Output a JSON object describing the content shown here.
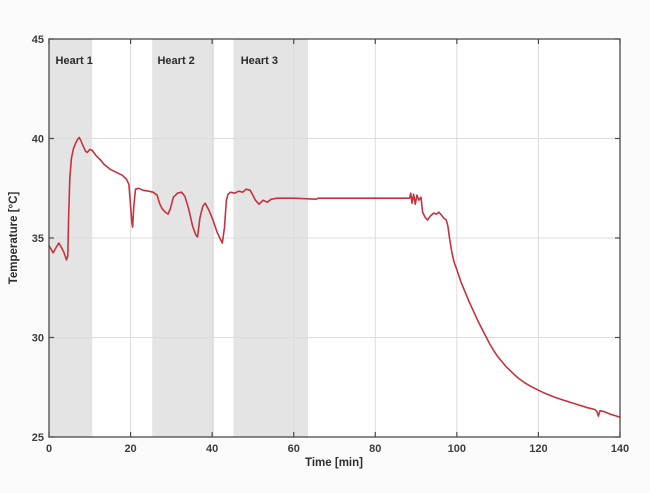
{
  "figure": {
    "background": "#fbfbfb",
    "plot_background": "#ffffff"
  },
  "chart_data": {
    "type": "line",
    "title": "",
    "xlabel": "Time [min]",
    "ylabel": "Temperature [°C]",
    "xlim": [
      0,
      140
    ],
    "ylim": [
      25,
      45
    ],
    "xticks": [
      0,
      20,
      40,
      60,
      80,
      100,
      120,
      140
    ],
    "yticks": [
      25,
      30,
      35,
      40,
      45
    ],
    "grid": true,
    "legend": "none",
    "colors": {
      "line": "#c6323e",
      "band": "#e4e4e4",
      "grid": "#dcdcdc",
      "axis": "#4a4a4a",
      "tick_text": "#3d3d3d"
    },
    "regions": [
      {
        "label": "Heart 1",
        "x0": 0,
        "x1": 10.6,
        "label_x": 1.6,
        "label_y": 43.75
      },
      {
        "label": "Heart 2",
        "x0": 25.3,
        "x1": 40.5,
        "label_x": 26.6,
        "label_y": 43.75
      },
      {
        "label": "Heart 3",
        "x0": 45.2,
        "x1": 63.5,
        "label_x": 47.0,
        "label_y": 43.75
      }
    ],
    "series": [
      {
        "name": "Temperature",
        "color": "#c6323e",
        "points": [
          [
            0,
            34.6
          ],
          [
            0.5,
            34.45
          ],
          [
            1,
            34.25
          ],
          [
            1.7,
            34.5
          ],
          [
            2.4,
            34.75
          ],
          [
            3,
            34.55
          ],
          [
            3.6,
            34.3
          ],
          [
            4.3,
            33.9
          ],
          [
            4.6,
            34.1
          ],
          [
            4.8,
            36.0
          ],
          [
            5.1,
            38.0
          ],
          [
            5.5,
            39.0
          ],
          [
            6,
            39.5
          ],
          [
            6.5,
            39.75
          ],
          [
            7,
            39.95
          ],
          [
            7.4,
            40.05
          ],
          [
            7.8,
            39.9
          ],
          [
            8.3,
            39.65
          ],
          [
            9,
            39.35
          ],
          [
            9.4,
            39.3
          ],
          [
            10,
            39.45
          ],
          [
            10.6,
            39.4
          ],
          [
            11.5,
            39.15
          ],
          [
            12.5,
            38.95
          ],
          [
            13.5,
            38.7
          ],
          [
            15,
            38.45
          ],
          [
            16.5,
            38.3
          ],
          [
            18,
            38.15
          ],
          [
            19,
            37.95
          ],
          [
            19.6,
            37.7
          ],
          [
            20,
            36.6
          ],
          [
            20.3,
            35.8
          ],
          [
            20.5,
            35.55
          ],
          [
            20.8,
            36.6
          ],
          [
            21.2,
            37.45
          ],
          [
            22,
            37.5
          ],
          [
            23,
            37.4
          ],
          [
            24.5,
            37.35
          ],
          [
            25.5,
            37.3
          ],
          [
            26.5,
            37.15
          ],
          [
            27.2,
            36.7
          ],
          [
            27.8,
            36.45
          ],
          [
            28.5,
            36.3
          ],
          [
            29.2,
            36.2
          ],
          [
            29.8,
            36.5
          ],
          [
            30.5,
            37.05
          ],
          [
            31.5,
            37.25
          ],
          [
            32.5,
            37.3
          ],
          [
            33.3,
            37.1
          ],
          [
            34.2,
            36.5
          ],
          [
            35.2,
            35.6
          ],
          [
            36,
            35.15
          ],
          [
            36.4,
            35.05
          ],
          [
            37,
            36.0
          ],
          [
            37.7,
            36.6
          ],
          [
            38.3,
            36.75
          ],
          [
            39.2,
            36.4
          ],
          [
            40.2,
            35.9
          ],
          [
            41.2,
            35.3
          ],
          [
            42,
            34.95
          ],
          [
            42.5,
            34.75
          ],
          [
            43,
            35.5
          ],
          [
            43.5,
            36.9
          ],
          [
            43.9,
            37.2
          ],
          [
            44.5,
            37.3
          ],
          [
            45.5,
            37.25
          ],
          [
            46.5,
            37.35
          ],
          [
            47.5,
            37.3
          ],
          [
            48.3,
            37.45
          ],
          [
            49.3,
            37.4
          ],
          [
            50,
            37.15
          ],
          [
            50.6,
            36.9
          ],
          [
            51.5,
            36.7
          ],
          [
            52.5,
            36.9
          ],
          [
            53.5,
            36.8
          ],
          [
            54.5,
            36.95
          ],
          [
            56,
            37.0
          ],
          [
            60,
            37.0
          ],
          [
            65.5,
            36.95
          ],
          [
            66,
            37.0
          ],
          [
            70,
            37.0
          ],
          [
            75,
            37.0
          ],
          [
            80,
            37.0
          ],
          [
            85,
            37.0
          ],
          [
            88.4,
            37.0
          ],
          [
            88.7,
            37.25
          ],
          [
            89,
            36.75
          ],
          [
            89.4,
            37.2
          ],
          [
            89.8,
            36.7
          ],
          [
            90.2,
            37.15
          ],
          [
            90.7,
            36.9
          ],
          [
            91.2,
            37.05
          ],
          [
            91.6,
            36.3
          ],
          [
            92.2,
            36.05
          ],
          [
            92.8,
            35.9
          ],
          [
            93.5,
            36.1
          ],
          [
            94.3,
            36.25
          ],
          [
            95,
            36.2
          ],
          [
            95.6,
            36.3
          ],
          [
            96.2,
            36.15
          ],
          [
            96.8,
            36.0
          ],
          [
            97.4,
            35.9
          ],
          [
            97.8,
            35.6
          ],
          [
            98.2,
            35.0
          ],
          [
            98.7,
            34.35
          ],
          [
            99.3,
            33.8
          ],
          [
            100,
            33.4
          ],
          [
            101,
            32.8
          ],
          [
            102,
            32.3
          ],
          [
            103,
            31.8
          ],
          [
            104,
            31.35
          ],
          [
            105,
            30.9
          ],
          [
            106,
            30.5
          ],
          [
            107,
            30.1
          ],
          [
            108,
            29.7
          ],
          [
            109,
            29.35
          ],
          [
            110,
            29.05
          ],
          [
            111,
            28.8
          ],
          [
            112,
            28.55
          ],
          [
            113,
            28.35
          ],
          [
            114,
            28.15
          ],
          [
            115,
            27.97
          ],
          [
            116,
            27.82
          ],
          [
            117,
            27.68
          ],
          [
            118,
            27.56
          ],
          [
            119,
            27.45
          ],
          [
            120,
            27.35
          ],
          [
            121,
            27.25
          ],
          [
            122,
            27.16
          ],
          [
            123,
            27.08
          ],
          [
            124,
            27.0
          ],
          [
            125,
            26.93
          ],
          [
            126,
            26.86
          ],
          [
            127,
            26.8
          ],
          [
            128,
            26.73
          ],
          [
            129,
            26.67
          ],
          [
            130,
            26.6
          ],
          [
            131,
            26.54
          ],
          [
            132,
            26.47
          ],
          [
            133,
            26.42
          ],
          [
            133.8,
            26.38
          ],
          [
            134.3,
            26.3
          ],
          [
            134.7,
            26.05
          ],
          [
            135.1,
            26.32
          ],
          [
            136,
            26.28
          ],
          [
            137,
            26.2
          ],
          [
            138,
            26.12
          ],
          [
            139,
            26.06
          ],
          [
            140,
            26.0
          ]
        ]
      }
    ]
  }
}
